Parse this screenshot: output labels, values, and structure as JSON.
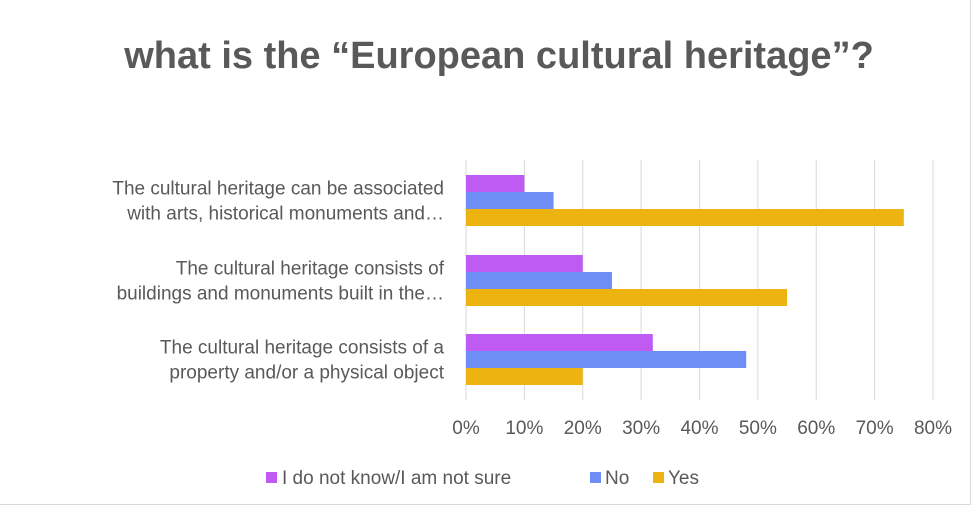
{
  "chart_data": {
    "type": "bar",
    "orientation": "horizontal",
    "title": "what is the “European cultural heritage”?",
    "categories": [
      [
        "The cultural heritage can be associated",
        "with arts, historical monuments and…"
      ],
      [
        "The cultural heritage consists of",
        "buildings and monuments built in the…"
      ],
      [
        "The cultural heritage consists of a",
        "property and/or a physical object"
      ]
    ],
    "series": [
      {
        "name": "I do not know/I am not sure",
        "color": "#bf5af2",
        "values": [
          10,
          20,
          32
        ]
      },
      {
        "name": "No",
        "color": "#6e8ef5",
        "values": [
          15,
          25,
          48
        ]
      },
      {
        "name": "Yes",
        "color": "#edb411",
        "values": [
          75,
          55,
          20
        ]
      }
    ],
    "x_ticks": [
      "0%",
      "10%",
      "20%",
      "30%",
      "40%",
      "50%",
      "60%",
      "70%",
      "80%"
    ],
    "xlim": [
      0,
      80
    ],
    "unit": "%",
    "grid": true,
    "legend": "bottom"
  }
}
